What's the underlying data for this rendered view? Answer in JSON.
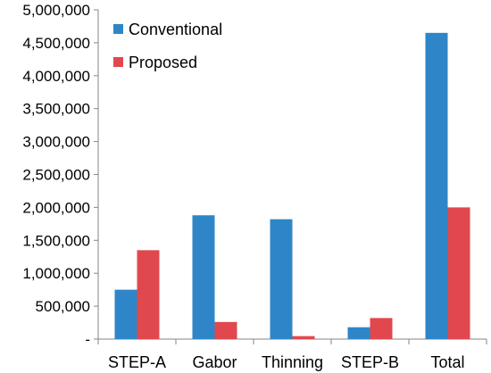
{
  "chart_data": {
    "type": "bar",
    "categories": [
      "STEP-A",
      "Gabor",
      "Thinning",
      "STEP-B",
      "Total"
    ],
    "series": [
      {
        "name": "Conventional",
        "values": [
          750000,
          1880000,
          1820000,
          180000,
          4650000
        ],
        "color": "#2E86C9"
      },
      {
        "name": "Proposed",
        "values": [
          1350000,
          260000,
          45000,
          320000,
          2000000
        ],
        "color": "#E0484D"
      }
    ],
    "ylim": [
      0,
      5000000
    ],
    "yticks": [
      0,
      500000,
      1000000,
      1500000,
      2000000,
      2500000,
      3000000,
      3500000,
      4000000,
      4500000,
      5000000
    ],
    "ytick_labels": [
      "-",
      "500,000",
      "1,000,000",
      "1,500,000",
      "2,000,000",
      "2,500,000",
      "3,000,000",
      "3,500,000",
      "4,000,000",
      "4,500,000",
      "5,000,000"
    ],
    "grid": false,
    "legend_position": "top-left",
    "title": "",
    "xlabel": "",
    "ylabel": ""
  }
}
